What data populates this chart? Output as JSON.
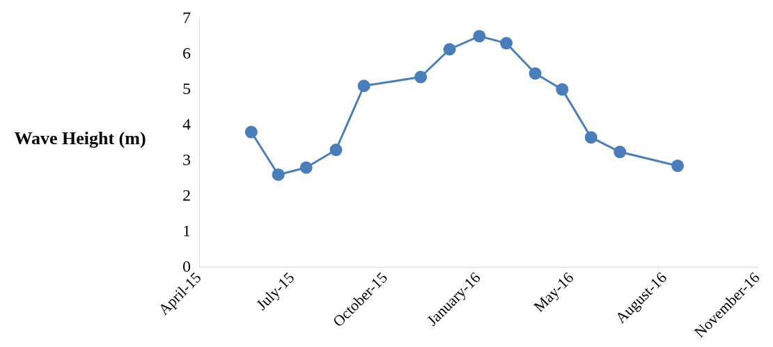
{
  "chart_data": {
    "type": "line",
    "ylabel": "Wave Height (m)",
    "x": [
      "2015-05-27",
      "2015-06-25",
      "2015-07-25",
      "2015-08-26",
      "2015-09-25",
      "2015-11-25",
      "2015-12-26",
      "2016-01-27",
      "2016-02-25",
      "2016-03-27",
      "2016-04-25",
      "2016-05-26",
      "2016-06-26",
      "2016-08-27"
    ],
    "series": [
      {
        "color": "#4a7ebb",
        "values": [
          3.8,
          2.6,
          2.8,
          3.3,
          5.1,
          5.35,
          6.13,
          6.5,
          6.3,
          5.45,
          5.0,
          3.65,
          3.24,
          2.85
        ]
      }
    ],
    "xlim": [
      "2015-04-01",
      "2016-11-21"
    ],
    "xticks": [
      {
        "value": "2015-04-01",
        "label": "April-15"
      },
      {
        "value": "2015-07-10",
        "label": "July-15"
      },
      {
        "value": "2015-10-18",
        "label": "October-15"
      },
      {
        "value": "2016-01-26",
        "label": "January-16"
      },
      {
        "value": "2016-05-05",
        "label": "May-16"
      },
      {
        "value": "2016-08-13",
        "label": "August-16"
      },
      {
        "value": "2016-11-21",
        "label": "November-16"
      }
    ],
    "ylim": [
      0,
      7
    ],
    "yticks": [
      0,
      1,
      2,
      3,
      4,
      5,
      6,
      7
    ],
    "grid": false,
    "legend": false,
    "marker": "circle",
    "line_style": "solid"
  }
}
